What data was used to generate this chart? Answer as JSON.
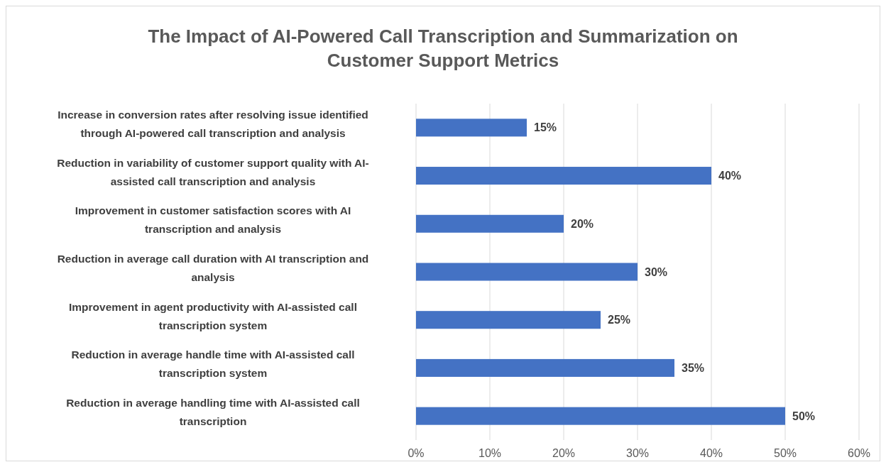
{
  "chart_data": {
    "type": "bar",
    "orientation": "horizontal",
    "title": "The Impact of AI-Powered Call Transcription and Summarization on Customer Support Metrics",
    "categories": [
      "Increase in conversion rates after resolving issue identified through AI-powered call transcription and analysis",
      "Reduction in variability of customer support quality with AI-assisted call transcription and analysis",
      "Improvement in customer satisfaction scores with AI transcription and analysis",
      "Reduction in average call duration with AI transcription and analysis",
      "Improvement in agent productivity with AI-assisted call transcription system",
      "Reduction in average handle time with AI-assisted call transcription system",
      "Reduction in average handling time with AI-assisted call transcription"
    ],
    "values": [
      15,
      40,
      20,
      30,
      25,
      35,
      50
    ],
    "value_labels": [
      "15%",
      "40%",
      "20%",
      "30%",
      "25%",
      "35%",
      "50%"
    ],
    "color": "#4472c4",
    "xlim": [
      0,
      60
    ],
    "xticks": [
      {
        "value": 0,
        "label": "0%"
      },
      {
        "value": 10,
        "label": "10%"
      },
      {
        "value": 20,
        "label": "20%"
      },
      {
        "value": 30,
        "label": "30%"
      },
      {
        "value": 40,
        "label": "40%"
      },
      {
        "value": 50,
        "label": "50%"
      },
      {
        "value": 60,
        "label": "60%"
      }
    ],
    "grid": "x"
  }
}
